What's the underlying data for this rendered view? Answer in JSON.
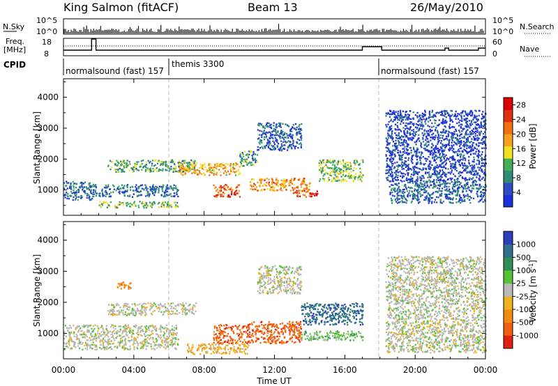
{
  "header": {
    "station": "King Salmon (fitACF)",
    "beam": "Beam 13",
    "date": "26/May/2010"
  },
  "panels": {
    "noise": {
      "left_label": "N.Sky",
      "right_label": "N.Search",
      "ticks": [
        "10^5",
        "10^0"
      ]
    },
    "freq": {
      "left_label_1": "Freq.",
      "left_label_2": "[MHz]",
      "right_label": "Nave",
      "left_ticks": [
        "18",
        "8"
      ],
      "right_ticks": [
        "60",
        "0"
      ]
    },
    "cpid": {
      "label": "CPID",
      "segments": [
        {
          "text": "normalsound (fast) 157",
          "start_hour": 0.0
        },
        {
          "text": "themis 3300",
          "start_hour": 6.0
        },
        {
          "text": "normalsound (fast) 157",
          "start_hour": 18.0
        }
      ]
    }
  },
  "chart_data": [
    {
      "type": "heatmap",
      "title": "",
      "xlabel": "",
      "ylabel": "Slant Range [km]",
      "ylim": [
        180,
        4600
      ],
      "yticks": [
        "1000",
        "2000",
        "3000",
        "4000"
      ],
      "ytick_values": [
        1000,
        2000,
        3000,
        4000
      ],
      "colorbar": {
        "label": "Power [dB]",
        "ticks": [
          "4",
          "8",
          "12",
          "16",
          "20",
          "24",
          "28"
        ],
        "tick_values": [
          4,
          8,
          12,
          16,
          20,
          24,
          28
        ],
        "range": [
          0,
          30
        ],
        "colors": [
          "#1c2fd8",
          "#2e4bc4",
          "#2f8c78",
          "#43ad57",
          "#f0e020",
          "#f7a020",
          "#f07010",
          "#e03010",
          "#d80000"
        ]
      },
      "scatter_bands": [
        {
          "t0": 0.0,
          "t1": 1.6,
          "r0": 700,
          "r1": 1300,
          "level": 5
        },
        {
          "t0": 1.6,
          "t1": 6.5,
          "r0": 800,
          "r1": 1200,
          "level": 6
        },
        {
          "t0": 2.0,
          "t1": 6.5,
          "r0": 450,
          "r1": 650,
          "level": 12
        },
        {
          "t0": 2.5,
          "t1": 7.5,
          "r0": 1600,
          "r1": 2000,
          "level": 10
        },
        {
          "t0": 6.5,
          "t1": 10.0,
          "r0": 1500,
          "r1": 1900,
          "level": 18
        },
        {
          "t0": 8.5,
          "t1": 10.0,
          "r0": 800,
          "r1": 1200,
          "level": 24
        },
        {
          "t0": 10.0,
          "t1": 11.0,
          "r0": 1800,
          "r1": 2300,
          "level": 9
        },
        {
          "t0": 10.5,
          "t1": 14.0,
          "r0": 1000,
          "r1": 1400,
          "level": 20
        },
        {
          "t0": 13.0,
          "t1": 14.5,
          "r0": 800,
          "r1": 1000,
          "level": 26
        },
        {
          "t0": 14.5,
          "t1": 17.0,
          "r0": 1300,
          "r1": 2000,
          "level": 12
        },
        {
          "t0": 11.0,
          "t1": 13.5,
          "r0": 2300,
          "r1": 3200,
          "level": 4
        },
        {
          "t0": 18.5,
          "t1": 24.0,
          "r0": 600,
          "r1": 1300,
          "level": 5
        },
        {
          "t0": 18.3,
          "t1": 24.0,
          "r0": 1300,
          "r1": 3600,
          "level": 2
        }
      ]
    },
    {
      "type": "heatmap",
      "title": "",
      "xlabel": "Time UT",
      "ylabel": "Slant Range [km]",
      "ylim": [
        180,
        4600
      ],
      "yticks": [
        "1000",
        "2000",
        "3000",
        "4000"
      ],
      "ytick_values": [
        1000,
        2000,
        3000,
        4000
      ],
      "colorbar": {
        "label": "Velocity [m s^-1]",
        "ticks": [
          "1000",
          "500",
          "100",
          "25",
          "-25",
          "-100",
          "-500",
          "-1000"
        ],
        "tick_values": [
          1000,
          500,
          100,
          25,
          -25,
          -100,
          -500,
          -1000
        ],
        "colors": [
          "#2a3fb8",
          "#2f6e8c",
          "#2f8f55",
          "#55c238",
          "#b8b8b8",
          "#f0b020",
          "#f08a10",
          "#f06010",
          "#e02010"
        ]
      },
      "scatter_bands": [
        {
          "t0": 0.0,
          "t1": 6.5,
          "r0": 500,
          "r1": 1300,
          "level": 4
        },
        {
          "t0": 2.5,
          "t1": 7.5,
          "r0": 1600,
          "r1": 2000,
          "level": 4
        },
        {
          "t0": 7.0,
          "t1": 10.5,
          "r0": 350,
          "r1": 700,
          "level": 5
        },
        {
          "t0": 8.5,
          "t1": 10.5,
          "r0": 700,
          "r1": 1300,
          "level": 7
        },
        {
          "t0": 10.5,
          "t1": 13.5,
          "r0": 700,
          "r1": 1400,
          "level": 7
        },
        {
          "t0": 13.5,
          "t1": 17.0,
          "r0": 800,
          "r1": 1100,
          "level": 3
        },
        {
          "t0": 13.5,
          "t1": 17.0,
          "r0": 1300,
          "r1": 2000,
          "level": 1
        },
        {
          "t0": 11.0,
          "t1": 13.5,
          "r0": 2300,
          "r1": 3200,
          "level": 4
        },
        {
          "t0": 3.0,
          "t1": 3.8,
          "r0": 2450,
          "r1": 2700,
          "level": 6
        },
        {
          "t0": 18.3,
          "t1": 24.0,
          "r0": 400,
          "r1": 3500,
          "level": 4
        }
      ]
    }
  ],
  "xaxis": {
    "xlabel": "Time UT",
    "xlim_hours": [
      0,
      24
    ],
    "tick_labels": [
      "00:00",
      "04:00",
      "08:00",
      "12:00",
      "16:00",
      "20:00",
      "00:00"
    ],
    "tick_hours": [
      0,
      4,
      8,
      12,
      16,
      20,
      24
    ]
  }
}
